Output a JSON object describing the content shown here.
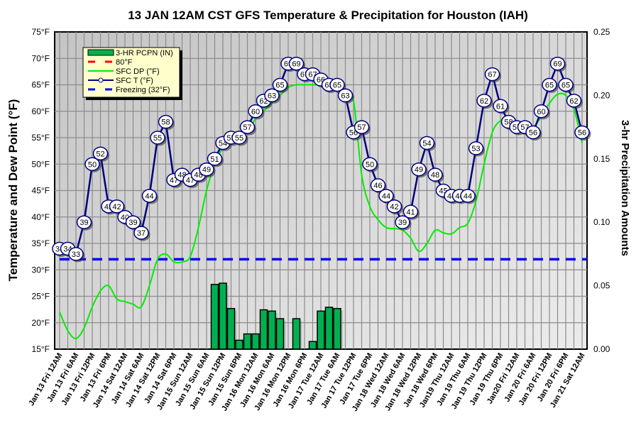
{
  "chart_data": {
    "type": "line",
    "title": "13 JAN 12AM CST GFS Temperature & Precipitation for Houston (IAH)",
    "ylabel": "Temperature and Dew Point (°F)",
    "y2label": "3-hr Precipitation Amounts",
    "ylim": [
      15,
      75
    ],
    "y2lim": [
      0,
      0.25
    ],
    "yticks": [
      "15°F",
      "20°F",
      "25°F",
      "30°F",
      "35°F",
      "40°F",
      "45°F",
      "50°F",
      "55°F",
      "60°F",
      "65°F",
      "70°F",
      "75°F"
    ],
    "y2ticks": [
      "0.00",
      "0.05",
      "0.10",
      "0.15",
      "0.20",
      "0.25"
    ],
    "grid": true,
    "legend_position": "top-left",
    "legend": [
      "3-HR PCPN  (IN)",
      "80°F",
      "SFC DP (°F)",
      "SFC T (°F)",
      "Freezing (32°F)"
    ],
    "xticks": [
      "Jan 13 Fri 12AM",
      "Jan 13 Fri 6AM",
      "Jan 13 Fri 12PM",
      "Jan 13 Fri 6PM",
      "Jan 14 Sat 12AM",
      "Jan 14 Sat 6AM",
      "Jan 14 Sat 12PM",
      "Jan 14 Sat 6PM",
      "Jan 15 Sun 12AM",
      "Jan 15 Sun 6AM",
      "Jan 15 Sun 12PM",
      "Jan 15 Sun 6PM",
      "Jan 16 Mon 12AM",
      "Jan 16 Mon 6AM",
      "Jan 16 Mon 12PM",
      "Jan 16 Mon 6PM",
      "Jan 17 Tue 12AM",
      "Jan 17 Tue 6AM",
      "Jan 17 Tue 12PM",
      "Jan 17 Tue 6PM",
      "Jan 18 Wed 12AM",
      "Jan 18 Wed 6AM",
      "Jan 18 Wed 12PM",
      "Jan 18 Wed 6PM",
      "Jan19 Thu 12AM",
      "Jan 19 Thu 6AM",
      "Jan 19 Thu 12PM",
      "Jan 19 Thu 6PM",
      "Jan20 Fri 12AM",
      "Jan 20 Fri 6AM",
      "Jan 20 Fri 12PM",
      "Jan 20 Fri 6PM",
      "Jan 21 Sat 12AM"
    ],
    "x_step_hours": 3,
    "series": [
      {
        "name": "SFC T (°F)",
        "color": "#000080",
        "values": [
          34,
          34,
          33,
          39,
          50,
          52,
          42,
          42,
          40,
          39,
          37,
          44,
          55,
          58,
          47,
          48,
          47,
          48,
          49,
          51,
          54,
          55,
          55,
          57,
          60,
          62,
          63,
          65,
          69,
          69,
          67,
          67,
          66,
          65,
          65,
          63,
          56,
          57,
          50,
          46,
          44,
          42,
          39,
          41,
          49,
          54,
          48,
          45,
          44,
          44,
          44,
          53,
          62,
          67,
          61,
          58,
          57,
          57,
          56,
          60,
          65,
          69,
          65,
          62,
          56
        ]
      },
      {
        "name": "SFC DP (°F)",
        "color": "#00ee00",
        "values": [
          22,
          18.5,
          17,
          19,
          23,
          26,
          27,
          24.5,
          24,
          23.5,
          23,
          27,
          32,
          33,
          31.5,
          31.5,
          32.5,
          38,
          45,
          50,
          53,
          54,
          55,
          56.5,
          58.5,
          60,
          61.5,
          63,
          64.5,
          65,
          65,
          65,
          65,
          64.8,
          64.5,
          63.5,
          62,
          48,
          42,
          39.5,
          38,
          37.8,
          37.5,
          36,
          33.5,
          35,
          37.5,
          37,
          36.8,
          38,
          38.8,
          43,
          50,
          56,
          58.2,
          58,
          57.8,
          57.3,
          57,
          59,
          61.5,
          63.2,
          63,
          60.5,
          54
        ]
      },
      {
        "name": "3-HR PCPN  (IN)",
        "color": "#00b050",
        "axis": "right",
        "values": [
          0,
          0,
          0,
          0,
          0,
          0,
          0,
          0,
          0,
          0,
          0,
          0,
          0,
          0,
          0,
          0,
          0,
          0,
          0,
          0.051,
          0.052,
          0.032,
          0.007,
          0.012,
          0.012,
          0.031,
          0.03,
          0.024,
          0,
          0.024,
          0,
          0.006,
          0.03,
          0.033,
          0.032,
          0,
          0,
          0,
          0,
          0,
          0,
          0,
          0,
          0,
          0,
          0,
          0,
          0,
          0,
          0,
          0,
          0,
          0,
          0,
          0,
          0,
          0,
          0,
          0,
          0,
          0,
          0,
          0,
          0,
          0
        ]
      },
      {
        "name": "Freezing (32°F)",
        "color": "#0000ff",
        "constant": 32
      }
    ]
  }
}
